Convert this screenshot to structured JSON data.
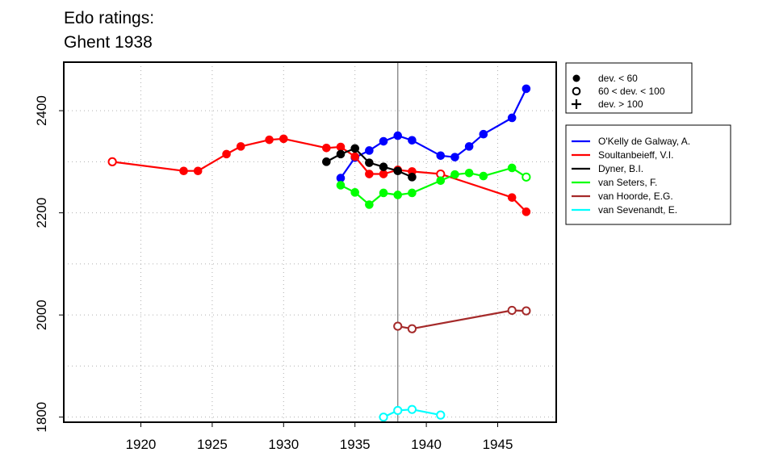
{
  "title_line1": "Edo ratings:",
  "title_line2": "Ghent 1938",
  "chart_data": {
    "type": "line",
    "title": "Edo ratings: Ghent 1938",
    "xlim": [
      1914.6,
      1949.1
    ],
    "ylim": [
      1790,
      2495
    ],
    "x_ticks": [
      "1920",
      "1925",
      "1930",
      "1935",
      "1940",
      "1945"
    ],
    "y_ticks": [
      "1800",
      "2000",
      "2200",
      "2400"
    ],
    "x_tick_values": [
      1920,
      1925,
      1930,
      1935,
      1940,
      1945
    ],
    "y_tick_values": [
      1800,
      2000,
      2200,
      2400
    ],
    "minor_y_grid": [
      1900,
      2100,
      2300
    ],
    "grid": "dotted",
    "reference_line_x": 1938,
    "marker_legend": {
      "placement": "top-right outside",
      "entries": [
        {
          "symbol": "filled-circle",
          "label": "dev. < 60"
        },
        {
          "symbol": "open-circle",
          "label": "60 < dev. < 100"
        },
        {
          "symbol": "plus",
          "label": "dev. > 100"
        }
      ]
    },
    "series": [
      {
        "name": "O'Kelly de Galway, A.",
        "color": "#0000ff",
        "x": [
          1934,
          1935,
          1936,
          1937,
          1938,
          1939,
          1941,
          1942,
          1943,
          1944,
          1946,
          1947
        ],
        "y": [
          2268,
          2308,
          2322,
          2340,
          2351,
          2342,
          2312,
          2309,
          2330,
          2354,
          2386,
          2443
        ],
        "marker": [
          "filled",
          "filled",
          "filled",
          "filled",
          "filled",
          "filled",
          "filled",
          "filled",
          "filled",
          "filled",
          "filled",
          "filled"
        ]
      },
      {
        "name": "Soultanbeieff, V.I.",
        "color": "#ff0000",
        "x": [
          1918,
          1923,
          1924,
          1926,
          1927,
          1929,
          1930,
          1933,
          1934,
          1935,
          1936,
          1937,
          1938,
          1939,
          1941,
          1946,
          1947
        ],
        "y": [
          2300,
          2282,
          2282,
          2315,
          2330,
          2343,
          2345,
          2327,
          2329,
          2310,
          2276,
          2276,
          2284,
          2281,
          2276,
          2230,
          2202
        ],
        "marker": [
          "open",
          "filled",
          "filled",
          "filled",
          "filled",
          "filled",
          "filled",
          "filled",
          "filled",
          "filled",
          "filled",
          "filled",
          "filled",
          "filled",
          "open",
          "filled",
          "filled"
        ]
      },
      {
        "name": "Dyner, B.I.",
        "color": "#000000",
        "x": [
          1933,
          1934,
          1935,
          1936,
          1937,
          1938,
          1939
        ],
        "y": [
          2300,
          2315,
          2326,
          2298,
          2290,
          2282,
          2270
        ],
        "marker": [
          "filled",
          "filled",
          "filled",
          "filled",
          "filled",
          "filled",
          "filled"
        ]
      },
      {
        "name": "van Seters, F.",
        "color": "#00ff00",
        "x": [
          1934,
          1935,
          1936,
          1937,
          1938,
          1939,
          1941,
          1942,
          1943,
          1944,
          1946,
          1947
        ],
        "y": [
          2254,
          2240,
          2216,
          2239,
          2235,
          2239,
          2263,
          2275,
          2278,
          2272,
          2288,
          2270
        ],
        "marker": [
          "filled",
          "filled",
          "filled",
          "filled",
          "filled",
          "filled",
          "filled",
          "filled",
          "filled",
          "filled",
          "filled",
          "open"
        ]
      },
      {
        "name": "van Hoorde, E.G.",
        "color": "#a52a2a",
        "x": [
          1938,
          1939,
          1946,
          1947
        ],
        "y": [
          1978,
          1973,
          2009,
          2008
        ],
        "marker": [
          "open",
          "open",
          "open",
          "open"
        ]
      },
      {
        "name": "van Sevenandt, E.",
        "color": "#00ffff",
        "x": [
          1937,
          1938,
          1939,
          1941
        ],
        "y": [
          1800,
          1813,
          1815,
          1804
        ],
        "marker": [
          "open",
          "open",
          "open",
          "open"
        ]
      }
    ]
  }
}
